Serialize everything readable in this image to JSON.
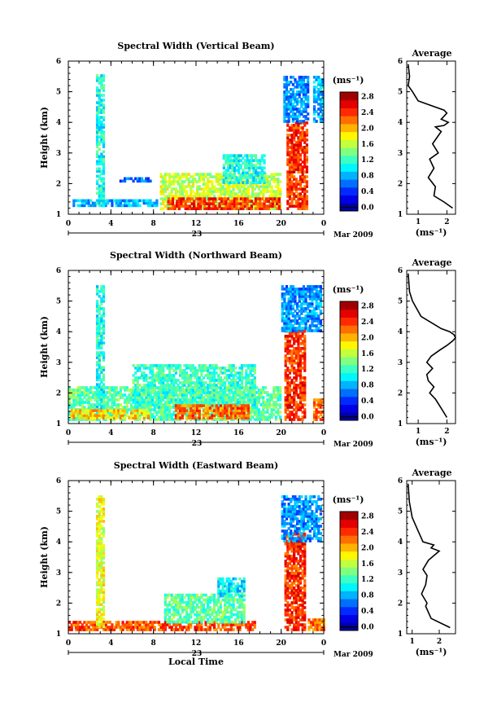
{
  "chart_data": [
    {
      "type": "heatmap",
      "title": "Spectral Width (Vertical Beam)",
      "ylabel": "Height (km)",
      "ylim": [
        1,
        6
      ],
      "yticks": [
        "1",
        "2",
        "3",
        "4",
        "5",
        "6"
      ],
      "xlim": [
        0,
        24
      ],
      "xticks": [
        "0",
        "4",
        "8",
        "12",
        "16",
        "20",
        "0"
      ],
      "date_day": "23",
      "date_month": "Mar 2009",
      "colorbar": {
        "label": "(ms⁻¹)",
        "range": [
          0.0,
          3.0
        ],
        "ticks": [
          "0.0",
          "0.4",
          "0.8",
          "1.2",
          "1.6",
          "2.0",
          "2.4",
          "2.8"
        ]
      },
      "patches": [
        {
          "x0": 0.4,
          "x1": 8.3,
          "y0": 1.25,
          "y1": 1.45,
          "v": 0.9
        },
        {
          "x0": 2.6,
          "x1": 3.3,
          "y0": 1.25,
          "y1": 5.5,
          "v": 1.2
        },
        {
          "x0": 4.8,
          "x1": 7.7,
          "y0": 2.05,
          "y1": 2.2,
          "v": 0.7
        },
        {
          "x0": 8.6,
          "x1": 20.0,
          "y0": 1.15,
          "y1": 2.3,
          "v": 1.7
        },
        {
          "x0": 14.5,
          "x1": 18.5,
          "y0": 2.0,
          "y1": 2.9,
          "v": 1.2
        },
        {
          "x0": 9.3,
          "x1": 19.8,
          "y0": 1.15,
          "y1": 1.5,
          "v": 2.5
        },
        {
          "x0": 20.5,
          "x1": 22.4,
          "y0": 1.15,
          "y1": 4.0,
          "v": 2.5
        },
        {
          "x0": 20.2,
          "x1": 22.5,
          "y0": 4.0,
          "y1": 5.45,
          "v": 0.8
        },
        {
          "x0": 23.0,
          "x1": 24.0,
          "y0": 4.0,
          "y1": 5.45,
          "v": 0.9
        }
      ],
      "average": {
        "title": "Average",
        "xlabel": "(ms⁻¹)",
        "xlim": [
          0.6,
          2.3
        ],
        "xticks": [
          1,
          2
        ],
        "ylim": [
          1,
          6
        ],
        "x": [
          2.2,
          1.9,
          1.55,
          1.6,
          1.35,
          1.55,
          1.4,
          1.7,
          1.5,
          1.65,
          1.8,
          1.6,
          1.9,
          2.05,
          1.8,
          2.0,
          1.9,
          1.0,
          0.8,
          0.65,
          0.7,
          0.65
        ],
        "y": [
          1.2,
          1.4,
          1.6,
          1.9,
          2.2,
          2.5,
          2.8,
          3.0,
          3.3,
          3.5,
          3.7,
          3.85,
          3.9,
          4.0,
          4.1,
          4.3,
          4.4,
          4.7,
          5.0,
          5.2,
          5.5,
          5.9
        ]
      }
    },
    {
      "type": "heatmap",
      "title": "Spectral Width (Northward Beam)",
      "ylabel": "Height (km)",
      "ylim": [
        1,
        6
      ],
      "yticks": [
        "1",
        "2",
        "3",
        "4",
        "5",
        "6"
      ],
      "xlim": [
        0,
        24
      ],
      "xticks": [
        "0",
        "4",
        "8",
        "12",
        "16",
        "20",
        "0"
      ],
      "date_day": "23",
      "date_month": "Mar 2009",
      "colorbar": {
        "label": "(ms⁻¹)",
        "range": [
          0.0,
          3.0
        ],
        "ticks": [
          "0.0",
          "0.4",
          "0.8",
          "1.2",
          "1.6",
          "2.0",
          "2.4",
          "2.8"
        ]
      },
      "patches": [
        {
          "x0": 0.0,
          "x1": 20.0,
          "y0": 1.1,
          "y1": 2.2,
          "v": 1.4
        },
        {
          "x0": 2.6,
          "x1": 3.3,
          "y0": 1.2,
          "y1": 5.5,
          "v": 1.2
        },
        {
          "x0": 6.0,
          "x1": 17.5,
          "y0": 1.5,
          "y1": 2.9,
          "v": 1.3
        },
        {
          "x0": 0.2,
          "x1": 7.5,
          "y0": 1.15,
          "y1": 1.4,
          "v": 2.0
        },
        {
          "x0": 10.0,
          "x1": 17.0,
          "y0": 1.15,
          "y1": 1.6,
          "v": 2.3
        },
        {
          "x0": 20.3,
          "x1": 22.3,
          "y0": 1.1,
          "y1": 4.1,
          "v": 2.5
        },
        {
          "x0": 20.0,
          "x1": 23.7,
          "y0": 4.0,
          "y1": 5.5,
          "v": 0.8
        },
        {
          "x0": 23.0,
          "x1": 24.0,
          "y0": 1.1,
          "y1": 1.8,
          "v": 2.3
        }
      ],
      "average": {
        "title": "Average",
        "xlabel": "(ms⁻¹)",
        "xlim": [
          0.6,
          2.3
        ],
        "xticks": [
          1,
          2
        ],
        "ylim": [
          1,
          6
        ],
        "x": [
          2.0,
          1.8,
          1.6,
          1.4,
          1.55,
          1.35,
          1.3,
          1.5,
          1.3,
          1.45,
          1.75,
          2.0,
          2.2,
          2.3,
          2.25,
          2.1,
          1.8,
          1.1,
          0.8,
          0.7,
          0.65
        ],
        "y": [
          1.2,
          1.5,
          1.8,
          2.0,
          2.2,
          2.4,
          2.6,
          2.8,
          3.0,
          3.2,
          3.4,
          3.55,
          3.7,
          3.8,
          3.9,
          4.0,
          4.1,
          4.5,
          5.0,
          5.3,
          5.9
        ]
      }
    },
    {
      "type": "heatmap",
      "title": "Spectral Width (Eastward Beam)",
      "ylabel": "Height (km)",
      "ylim": [
        1,
        6
      ],
      "yticks": [
        "1",
        "2",
        "3",
        "4",
        "5",
        "6"
      ],
      "xlim": [
        0,
        24
      ],
      "xticks": [
        "0",
        "4",
        "8",
        "12",
        "16",
        "20",
        "0"
      ],
      "date_day": "23",
      "date_month": "Mar 2009",
      "xlabel": "Local Time",
      "colorbar": {
        "label": "(ms⁻¹)",
        "range": [
          0.0,
          3.0
        ],
        "ticks": [
          "0.0",
          "0.4",
          "0.8",
          "1.2",
          "1.6",
          "2.0",
          "2.4",
          "2.8"
        ]
      },
      "patches": [
        {
          "x0": 0.0,
          "x1": 17.5,
          "y0": 1.1,
          "y1": 1.35,
          "v": 2.4
        },
        {
          "x0": 2.6,
          "x1": 3.3,
          "y0": 1.2,
          "y1": 5.5,
          "v": 1.8
        },
        {
          "x0": 9.0,
          "x1": 16.5,
          "y0": 1.35,
          "y1": 2.3,
          "v": 1.4
        },
        {
          "x0": 14.0,
          "x1": 16.5,
          "y0": 2.2,
          "y1": 2.8,
          "v": 1.1
        },
        {
          "x0": 20.3,
          "x1": 22.2,
          "y0": 1.1,
          "y1": 4.3,
          "v": 2.5
        },
        {
          "x0": 20.0,
          "x1": 23.8,
          "y0": 4.0,
          "y1": 5.5,
          "v": 0.8
        },
        {
          "x0": 22.5,
          "x1": 24.0,
          "y0": 1.1,
          "y1": 1.5,
          "v": 2.3
        }
      ],
      "average": {
        "title": "Average",
        "xlabel": "(ms⁻¹)",
        "xlim": [
          0.8,
          2.6
        ],
        "xticks": [
          1,
          2
        ],
        "ylim": [
          1,
          6
        ],
        "x": [
          2.4,
          1.7,
          1.5,
          1.55,
          1.35,
          1.5,
          1.55,
          1.4,
          1.6,
          2.0,
          1.7,
          1.8,
          1.4,
          1.2,
          1.0,
          0.9,
          0.85
        ],
        "y": [
          1.2,
          1.5,
          1.9,
          2.0,
          2.3,
          2.6,
          2.9,
          3.1,
          3.4,
          3.7,
          3.8,
          3.9,
          4.0,
          4.4,
          4.8,
          5.3,
          5.9
        ]
      }
    }
  ]
}
